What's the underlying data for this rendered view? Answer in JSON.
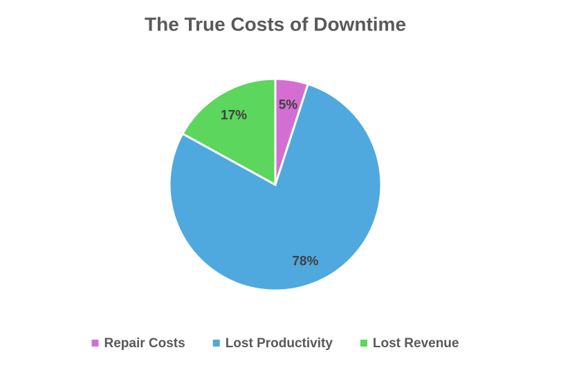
{
  "chart_data": {
    "type": "pie",
    "title": "The True Costs of Downtime",
    "categories": [
      "Repair Costs",
      "Lost Productivity",
      "Lost Revenue"
    ],
    "values": [
      5,
      78,
      17
    ],
    "value_labels": [
      "5%",
      "78%",
      "17%"
    ],
    "colors": [
      "#d36fd3",
      "#4fa9de",
      "#5cd65c"
    ],
    "legend": "bottom"
  }
}
